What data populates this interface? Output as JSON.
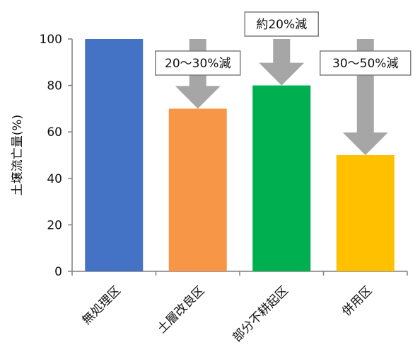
{
  "chart_data": {
    "type": "bar",
    "title": "",
    "xlabel": "",
    "ylabel": "土壌流亡量(%)",
    "ylim": [
      0,
      100
    ],
    "yticks": [
      0,
      20,
      40,
      60,
      80,
      100
    ],
    "grid": false,
    "categories": [
      "無処理区",
      "土層改良区",
      "部分不耕起区",
      "併用区"
    ],
    "values": [
      100,
      70,
      80,
      50
    ],
    "colors": [
      "#4472C4",
      "#F79646",
      "#00B050",
      "#FFC000"
    ],
    "arrow_color": "#A6A6A6",
    "annotations": [
      {
        "category_index": 1,
        "text": "20～30%減",
        "from": 100,
        "to": 70
      },
      {
        "category_index": 2,
        "text": "約20%減",
        "from": 100,
        "to": 80
      },
      {
        "category_index": 3,
        "text": "30～50%減",
        "from": 100,
        "to": 50
      }
    ]
  }
}
